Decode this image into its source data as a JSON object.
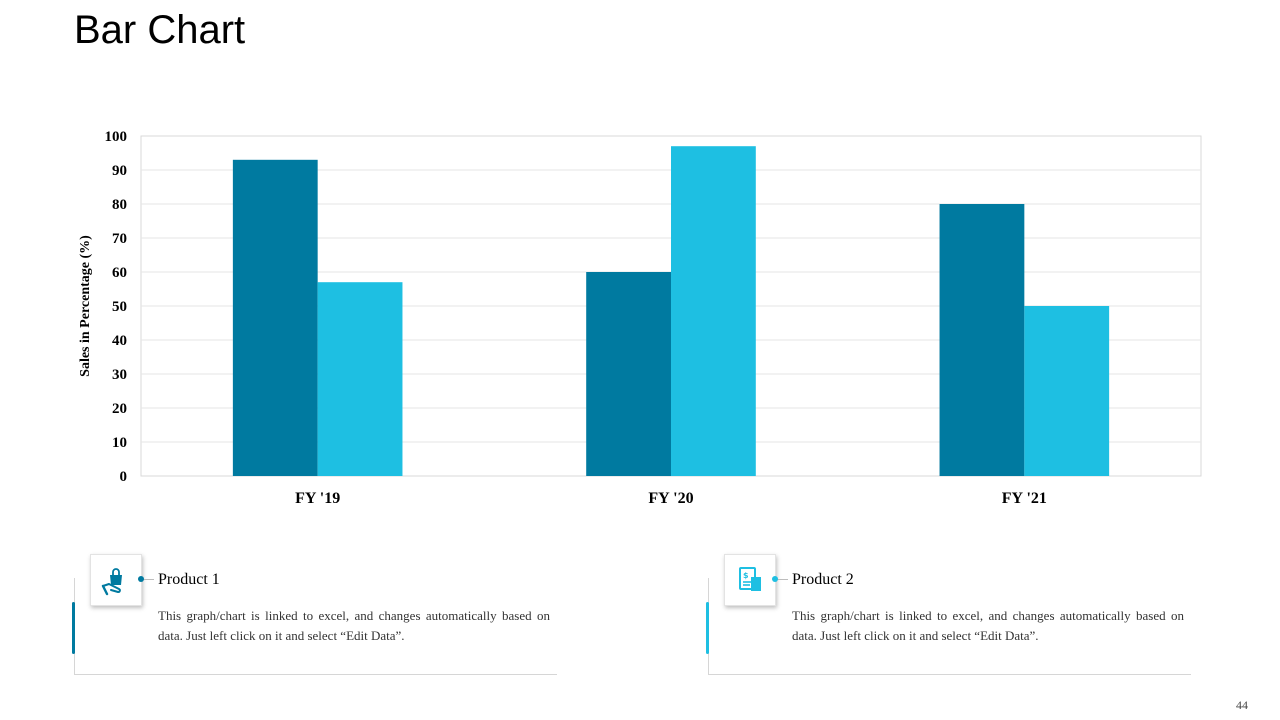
{
  "slide": {
    "title": "Bar Chart",
    "page_number": "44"
  },
  "colors": {
    "product1": "#007aa0",
    "product2": "#1ebfe2",
    "grid": "#e6e6e6",
    "frame": "#d9d9d9",
    "axis_text": "#000000"
  },
  "chart_data": {
    "type": "bar",
    "title": "",
    "xlabel": "",
    "ylabel": "Sales in Percentage (%)",
    "ylim": [
      0,
      100
    ],
    "yticks": [
      0,
      10,
      20,
      30,
      40,
      50,
      60,
      70,
      80,
      90,
      100
    ],
    "grid": true,
    "categories": [
      "FY '19",
      "FY '20",
      "FY '21"
    ],
    "series": [
      {
        "name": "Product 1",
        "values": [
          93,
          60,
          80
        ]
      },
      {
        "name": "Product 2",
        "values": [
          57,
          97,
          50
        ]
      }
    ]
  },
  "cards": [
    {
      "icon": "hand-shopping-bag-icon",
      "heading": "Product 1",
      "text": "This graph/chart is linked to excel, and changes automatically based on data. Just left click on it and select “Edit Data”."
    },
    {
      "icon": "invoice-document-icon",
      "heading": "Product 2",
      "text": "This graph/chart is linked to excel, and changes automatically based on data. Just left click on it and select “Edit Data”."
    }
  ]
}
